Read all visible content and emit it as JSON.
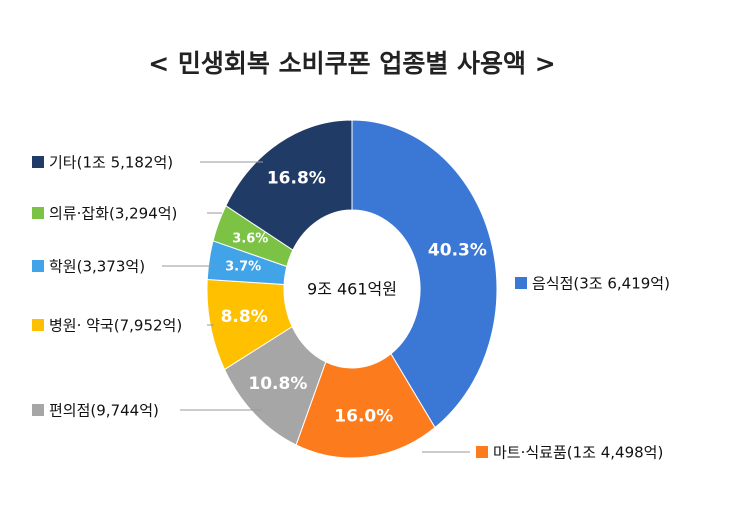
{
  "chart_data": {
    "type": "donut",
    "title": "< 민생회복 소비쿠폰 업종별 사용액 >",
    "center_label": "9조 461억원",
    "categories": [
      "음식점(3조 6,419억)",
      "마트·식료품(1조 4,498억)",
      "편의점(9,744억)",
      "병원· 약국(7,952억)",
      "학원(3,373억)",
      "의류·잡화(3,294억)",
      "기타(1조 5,182억)"
    ],
    "values": [
      40.3,
      16.0,
      10.8,
      8.8,
      3.7,
      3.6,
      16.8
    ],
    "value_labels": [
      "40.3%",
      "16.0%",
      "10.8%",
      "8.8%",
      "3.7%",
      "3.6%",
      "16.8%"
    ],
    "colors": [
      "#3b78d6",
      "#fc7b1c",
      "#a6a6a6",
      "#ffc000",
      "#41a3e8",
      "#7cc245",
      "#1f3b66"
    ]
  }
}
